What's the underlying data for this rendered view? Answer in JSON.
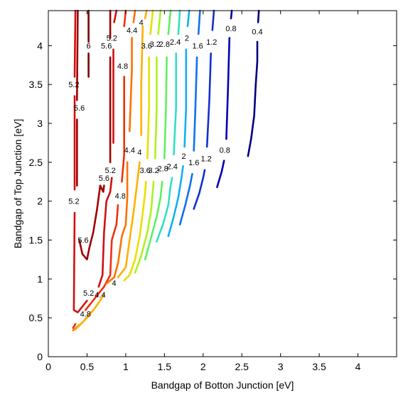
{
  "chart_data": {
    "type": "contour",
    "title": "",
    "xlabel": "Bandgap of Botton Junction [eV]",
    "ylabel": "Bandgap of Top Junction [eV]",
    "xlim": [
      0,
      4.5
    ],
    "ylim": [
      0,
      4.45
    ],
    "xticks": [
      "0",
      "0.5",
      "1",
      "1.5",
      "2",
      "2.5",
      "3",
      "3.5",
      "4"
    ],
    "yticks": [
      "0",
      "0.5",
      "1",
      "1.5",
      "2",
      "2.5",
      "3",
      "3.5",
      "4"
    ],
    "grid": false,
    "levels": [
      {
        "value": 6.0,
        "color": "#7a0000",
        "segments": [
          [
            [
              0.52,
              4.45
            ],
            [
              0.52,
              4.05
            ]
          ],
          [
            [
              0.52,
              3.9
            ],
            [
              0.52,
              3.6
            ]
          ]
        ],
        "labels": [
          {
            "text": "6",
            "x": 0.52,
            "y": 4.0
          }
        ]
      },
      {
        "value": 5.6,
        "color": "#a00000",
        "segments": [
          [
            [
              0.38,
              4.45
            ],
            [
              0.37,
              3.3
            ]
          ],
          [
            [
              0.37,
              3.05
            ],
            [
              0.37,
              2.2
            ]
          ],
          [
            [
              0.4,
              1.5
            ],
            [
              0.44,
              1.32
            ],
            [
              0.5,
              1.25
            ],
            [
              0.53,
              1.4
            ],
            [
              0.58,
              1.6
            ],
            [
              0.63,
              1.9
            ],
            [
              0.67,
              2.2
            ],
            [
              0.71,
              2.12
            ],
            [
              0.72,
              2.2
            ]
          ],
          [
            [
              0.8,
              4.45
            ],
            [
              0.8,
              4.1
            ]
          ],
          [
            [
              0.8,
              3.85
            ],
            [
              0.8,
              2.5
            ]
          ]
        ],
        "labels": [
          {
            "text": "5.6",
            "x": 0.4,
            "y": 3.2
          },
          {
            "text": "5.6",
            "x": 0.45,
            "y": 1.5
          },
          {
            "text": "5.6",
            "x": 0.72,
            "y": 2.3
          },
          {
            "text": "5.6",
            "x": 0.75,
            "y": 4.0
          }
        ]
      },
      {
        "value": 5.2,
        "color": "#d01010",
        "segments": [
          [
            [
              0.35,
              4.45
            ],
            [
              0.34,
              3.6
            ]
          ],
          [
            [
              0.34,
              3.35
            ],
            [
              0.34,
              2.15
            ]
          ],
          [
            [
              0.34,
              1.85
            ],
            [
              0.33,
              0.6
            ],
            [
              0.38,
              0.57
            ],
            [
              0.5,
              0.72
            ]
          ],
          [
            [
              0.82,
              2.3
            ],
            [
              0.8,
              2.12
            ],
            [
              0.75,
              2.0
            ],
            [
              0.72,
              1.6
            ],
            [
              0.7,
              1.05
            ],
            [
              0.65,
              0.9
            ]
          ],
          [
            [
              0.88,
              4.45
            ],
            [
              0.85,
              4.3
            ]
          ],
          [
            [
              0.84,
              3.95
            ],
            [
              0.84,
              2.75
            ]
          ]
        ],
        "labels": [
          {
            "text": "5.2",
            "x": 0.33,
            "y": 3.5
          },
          {
            "text": "5.2",
            "x": 0.33,
            "y": 2.0
          },
          {
            "text": "5.2",
            "x": 0.52,
            "y": 0.82
          },
          {
            "text": "5.2",
            "x": 0.8,
            "y": 2.4
          },
          {
            "text": "5.2",
            "x": 0.82,
            "y": 4.1
          }
        ]
      },
      {
        "value": 4.8,
        "color": "#f03010",
        "segments": [
          [
            [
              0.32,
              0.37
            ],
            [
              0.35,
              0.42
            ]
          ],
          [
            [
              0.48,
              0.6
            ],
            [
              0.6,
              0.75
            ],
            [
              0.72,
              0.9
            ],
            [
              0.8,
              1.05
            ],
            [
              0.82,
              1.5
            ],
            [
              0.88,
              1.7
            ],
            [
              0.9,
              1.95
            ]
          ],
          [
            [
              0.95,
              2.25
            ],
            [
              0.98,
              2.6
            ],
            [
              0.98,
              3.6
            ]
          ],
          [
            [
              0.98,
              4.25
            ],
            [
              1.0,
              4.45
            ]
          ]
        ],
        "labels": [
          {
            "text": "4.8",
            "x": 0.48,
            "y": 0.55
          },
          {
            "text": "4.8",
            "x": 0.93,
            "y": 2.07
          },
          {
            "text": "4.8",
            "x": 0.96,
            "y": 3.74
          }
        ]
      },
      {
        "value": 4.4,
        "color": "#ff7000",
        "segments": [
          [
            [
              0.32,
              0.34
            ],
            [
              0.45,
              0.45
            ],
            [
              0.58,
              0.6
            ]
          ],
          [
            [
              0.75,
              0.94
            ],
            [
              0.85,
              1.02
            ],
            [
              0.9,
              1.2
            ],
            [
              0.95,
              1.55
            ],
            [
              1.0,
              1.7
            ],
            [
              1.02,
              2.05
            ],
            [
              1.02,
              2.5
            ]
          ],
          [
            [
              1.05,
              2.9
            ],
            [
              1.08,
              3.7
            ],
            [
              1.08,
              4.1
            ]
          ],
          [
            [
              1.1,
              4.3
            ],
            [
              1.12,
              4.45
            ]
          ]
        ],
        "labels": [
          {
            "text": "4.4",
            "x": 0.67,
            "y": 0.8
          },
          {
            "text": "4.4",
            "x": 1.05,
            "y": 2.66
          },
          {
            "text": "4.4",
            "x": 1.08,
            "y": 4.2
          }
        ]
      },
      {
        "value": 4.0,
        "color": "#ffb000",
        "segments": [
          [
            [
              0.35,
              0.35
            ],
            [
              0.5,
              0.5
            ],
            [
              0.62,
              0.65
            ],
            [
              0.72,
              0.8
            ]
          ],
          [
            [
              0.9,
              1.02
            ],
            [
              1.0,
              1.15
            ],
            [
              1.05,
              1.5
            ],
            [
              1.1,
              1.85
            ],
            [
              1.15,
              2.25
            ],
            [
              1.18,
              2.5
            ]
          ],
          [
            [
              1.2,
              2.85
            ],
            [
              1.2,
              3.5
            ],
            [
              1.22,
              4.25
            ]
          ],
          [
            [
              1.25,
              4.35
            ],
            [
              1.27,
              4.45
            ]
          ]
        ],
        "labels": [
          {
            "text": "4",
            "x": 0.85,
            "y": 0.95
          },
          {
            "text": "4",
            "x": 1.18,
            "y": 2.63
          },
          {
            "text": "4",
            "x": 1.2,
            "y": 4.3
          }
        ]
      },
      {
        "value": 3.6,
        "color": "#e8e000",
        "segments": [
          [
            [
              0.98,
              0.98
            ],
            [
              1.05,
              1.05
            ],
            [
              1.12,
              1.25
            ],
            [
              1.18,
              1.55
            ],
            [
              1.22,
              1.85
            ],
            [
              1.25,
              2.1
            ],
            [
              1.26,
              2.25
            ]
          ],
          [
            [
              1.28,
              2.55
            ],
            [
              1.3,
              3.2
            ],
            [
              1.3,
              3.85
            ]
          ],
          [
            [
              1.32,
              4.15
            ],
            [
              1.35,
              4.45
            ]
          ]
        ],
        "labels": [
          {
            "text": "3.6",
            "x": 1.25,
            "y": 2.4
          },
          {
            "text": "3.6",
            "x": 1.27,
            "y": 4.0
          }
        ]
      },
      {
        "value": 3.2,
        "color": "#b0f020",
        "segments": [
          [
            [
              1.12,
              1.08
            ],
            [
              1.2,
              1.3
            ],
            [
              1.28,
              1.6
            ],
            [
              1.33,
              1.9
            ],
            [
              1.36,
              2.25
            ]
          ],
          [
            [
              1.38,
              2.55
            ],
            [
              1.4,
              3.2
            ],
            [
              1.4,
              3.85
            ]
          ],
          [
            [
              1.42,
              4.15
            ],
            [
              1.45,
              4.45
            ]
          ]
        ],
        "labels": [
          {
            "text": "3.2",
            "x": 1.36,
            "y": 2.4
          },
          {
            "text": "3.2",
            "x": 1.38,
            "y": 4.02
          }
        ]
      },
      {
        "value": 2.8,
        "color": "#60f060",
        "segments": [
          [
            [
              1.25,
              1.25
            ],
            [
              1.32,
              1.5
            ],
            [
              1.4,
              1.8
            ],
            [
              1.45,
              2.05
            ],
            [
              1.47,
              2.25
            ]
          ],
          [
            [
              1.5,
              2.55
            ],
            [
              1.52,
              3.2
            ],
            [
              1.53,
              3.85
            ]
          ],
          [
            [
              1.55,
              4.15
            ],
            [
              1.58,
              4.45
            ]
          ]
        ],
        "labels": [
          {
            "text": "2.8",
            "x": 1.48,
            "y": 2.42
          },
          {
            "text": "2.8",
            "x": 1.5,
            "y": 4.02
          }
        ]
      },
      {
        "value": 2.4,
        "color": "#30e0c0",
        "segments": [
          [
            [
              1.4,
              1.48
            ],
            [
              1.48,
              1.7
            ],
            [
              1.55,
              1.95
            ],
            [
              1.58,
              2.2
            ],
            [
              1.6,
              2.3
            ]
          ],
          [
            [
              1.62,
              2.6
            ],
            [
              1.65,
              3.2
            ],
            [
              1.65,
              3.9
            ]
          ],
          [
            [
              1.68,
              4.15
            ],
            [
              1.7,
              4.45
            ]
          ]
        ],
        "labels": [
          {
            "text": "2.4",
            "x": 1.6,
            "y": 2.45
          },
          {
            "text": "2.4",
            "x": 1.64,
            "y": 4.05
          }
        ]
      },
      {
        "value": 2.0,
        "color": "#10b0f0",
        "segments": [
          [
            [
              1.55,
              1.55
            ],
            [
              1.62,
              1.8
            ],
            [
              1.68,
              2.05
            ],
            [
              1.72,
              2.3
            ],
            [
              1.74,
              2.45
            ]
          ],
          [
            [
              1.76,
              2.7
            ],
            [
              1.78,
              3.2
            ],
            [
              1.78,
              3.95
            ]
          ],
          [
            [
              1.8,
              4.25
            ],
            [
              1.82,
              4.45
            ]
          ]
        ],
        "labels": [
          {
            "text": "2",
            "x": 1.75,
            "y": 2.58
          },
          {
            "text": "2",
            "x": 1.79,
            "y": 4.1
          }
        ]
      },
      {
        "value": 1.6,
        "color": "#1070f0",
        "segments": [
          [
            [
              1.7,
              1.7
            ],
            [
              1.77,
              1.95
            ],
            [
              1.83,
              2.2
            ],
            [
              1.86,
              2.35
            ]
          ],
          [
            [
              1.88,
              2.65
            ],
            [
              1.9,
              3.2
            ],
            [
              1.92,
              3.85
            ]
          ],
          [
            [
              1.94,
              4.15
            ],
            [
              1.96,
              4.45
            ]
          ]
        ],
        "labels": [
          {
            "text": "1.6",
            "x": 1.88,
            "y": 2.5
          },
          {
            "text": "1.6",
            "x": 1.93,
            "y": 4.0
          }
        ]
      },
      {
        "value": 1.2,
        "color": "#1030d0",
        "segments": [
          [
            [
              1.88,
              1.9
            ],
            [
              1.95,
              2.1
            ],
            [
              2.0,
              2.3
            ],
            [
              2.02,
              2.4
            ]
          ],
          [
            [
              2.05,
              2.7
            ],
            [
              2.08,
              3.3
            ],
            [
              2.1,
              3.9
            ]
          ],
          [
            [
              2.12,
              4.2
            ],
            [
              2.14,
              4.45
            ]
          ]
        ],
        "labels": [
          {
            "text": "1.2",
            "x": 2.04,
            "y": 2.55
          },
          {
            "text": "1.2",
            "x": 2.11,
            "y": 4.05
          }
        ]
      },
      {
        "value": 0.8,
        "color": "#0000b0",
        "segments": [
          [
            [
              2.18,
              2.18
            ],
            [
              2.24,
              2.38
            ],
            [
              2.27,
              2.52
            ]
          ],
          [
            [
              2.3,
              2.8
            ],
            [
              2.32,
              3.4
            ],
            [
              2.34,
              4.1
            ]
          ],
          [
            [
              2.36,
              4.35
            ],
            [
              2.37,
              4.45
            ]
          ]
        ],
        "labels": [
          {
            "text": "0.8",
            "x": 2.28,
            "y": 2.66
          },
          {
            "text": "0.8",
            "x": 2.36,
            "y": 4.22
          }
        ]
      },
      {
        "value": 0.4,
        "color": "#000080",
        "segments": [
          [
            [
              2.58,
              2.58
            ],
            [
              2.62,
              2.8
            ],
            [
              2.66,
              3.1
            ],
            [
              2.68,
              3.5
            ],
            [
              2.7,
              3.8
            ],
            [
              2.7,
              4.05
            ]
          ],
          [
            [
              2.71,
              4.3
            ],
            [
              2.72,
              4.45
            ]
          ]
        ],
        "labels": [
          {
            "text": "0.4",
            "x": 2.7,
            "y": 4.18
          }
        ]
      }
    ]
  }
}
